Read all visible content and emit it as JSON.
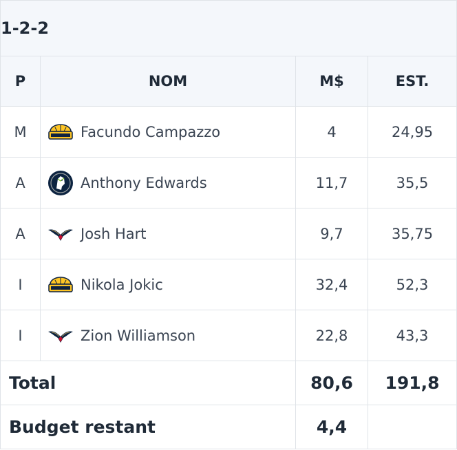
{
  "lineup": {
    "formation": "1-2-2",
    "headers": {
      "pos": "P",
      "name": "NOM",
      "salary": "M$",
      "estimate": "EST."
    },
    "players": [
      {
        "pos": "M",
        "name": "Facundo Campazzo",
        "salary": "4",
        "estimate": "24,95",
        "team_icon": "nuggets-logo-icon"
      },
      {
        "pos": "A",
        "name": "Anthony Edwards",
        "salary": "11,7",
        "estimate": "35,5",
        "team_icon": "timberwolves-logo-icon"
      },
      {
        "pos": "A",
        "name": "Josh Hart",
        "salary": "9,7",
        "estimate": "35,75",
        "team_icon": "pelicans-logo-icon"
      },
      {
        "pos": "I",
        "name": "Nikola Jokic",
        "salary": "32,4",
        "estimate": "52,3",
        "team_icon": "nuggets-logo-icon"
      },
      {
        "pos": "I",
        "name": "Zion Williamson",
        "salary": "22,8",
        "estimate": "43,3",
        "team_icon": "pelicans-logo-icon"
      }
    ],
    "total": {
      "label": "Total",
      "salary": "80,6",
      "estimate": "191,8"
    },
    "budget": {
      "label": "Budget restant",
      "value": "4,4"
    }
  },
  "colors": {
    "header_bg": "#f4f7fb",
    "border": "#dfe3e8",
    "nuggets_gold": "#fec524",
    "nuggets_navy": "#0e2240",
    "wolves_navy": "#0c2340",
    "pelicans_navy": "#0c2340",
    "pelicans_red": "#c8102e"
  }
}
